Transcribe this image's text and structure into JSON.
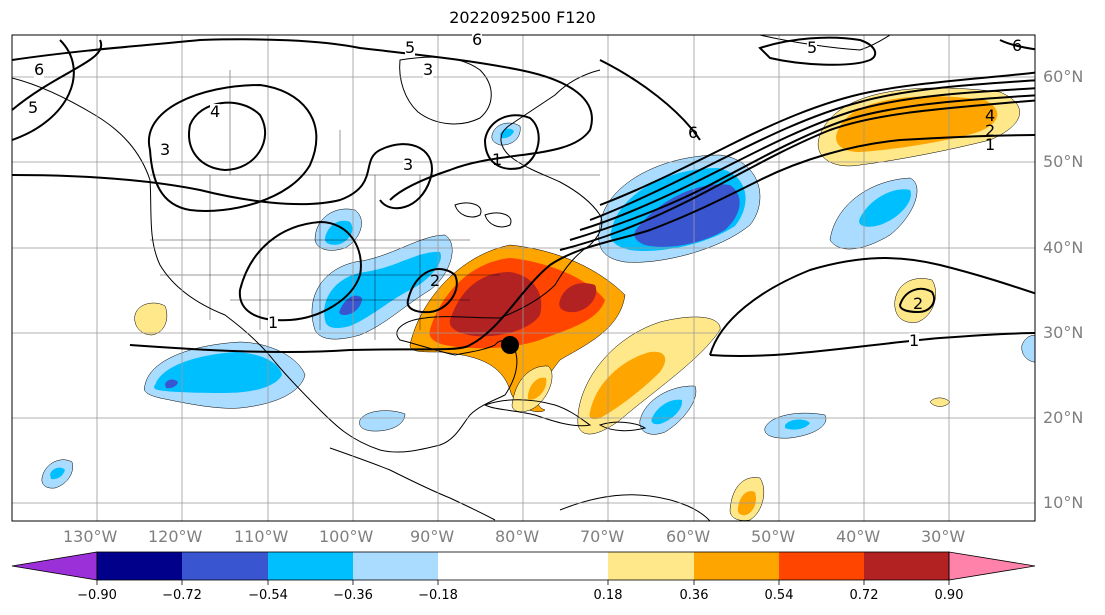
{
  "title": "2022092500 F120",
  "map": {
    "lat_labels": [
      "60°N",
      "50°N",
      "40°N",
      "30°N",
      "20°N",
      "10°N"
    ],
    "lon_labels": [
      "130°W",
      "120°W",
      "110°W",
      "100°W",
      "90°W",
      "80°W",
      "70°W",
      "60°W",
      "50°W",
      "40°W",
      "30°W"
    ],
    "contour_labels": [
      "6",
      "5",
      "6",
      "3",
      "5",
      "4",
      "3",
      "3",
      "1",
      "5",
      "6",
      "4",
      "2",
      "1",
      "1",
      "2",
      "1",
      "2",
      "6"
    ],
    "colors": {
      "land_border": "#000000",
      "gridline": "#999999",
      "contour": "#000000",
      "marker": "#000000"
    }
  },
  "colorbar": {
    "ticks": [
      "−0.90",
      "−0.72",
      "−0.54",
      "−0.36",
      "−0.18",
      "0.18",
      "0.36",
      "0.54",
      "0.72",
      "0.90"
    ],
    "colors": [
      "#9b30d9",
      "#00008b",
      "#3a55d0",
      "#00bfff",
      "#aadcff",
      "#ffffff",
      "#ffe88a",
      "#ffa500",
      "#ff4500",
      "#b22222",
      "#ff82ab"
    ]
  }
}
